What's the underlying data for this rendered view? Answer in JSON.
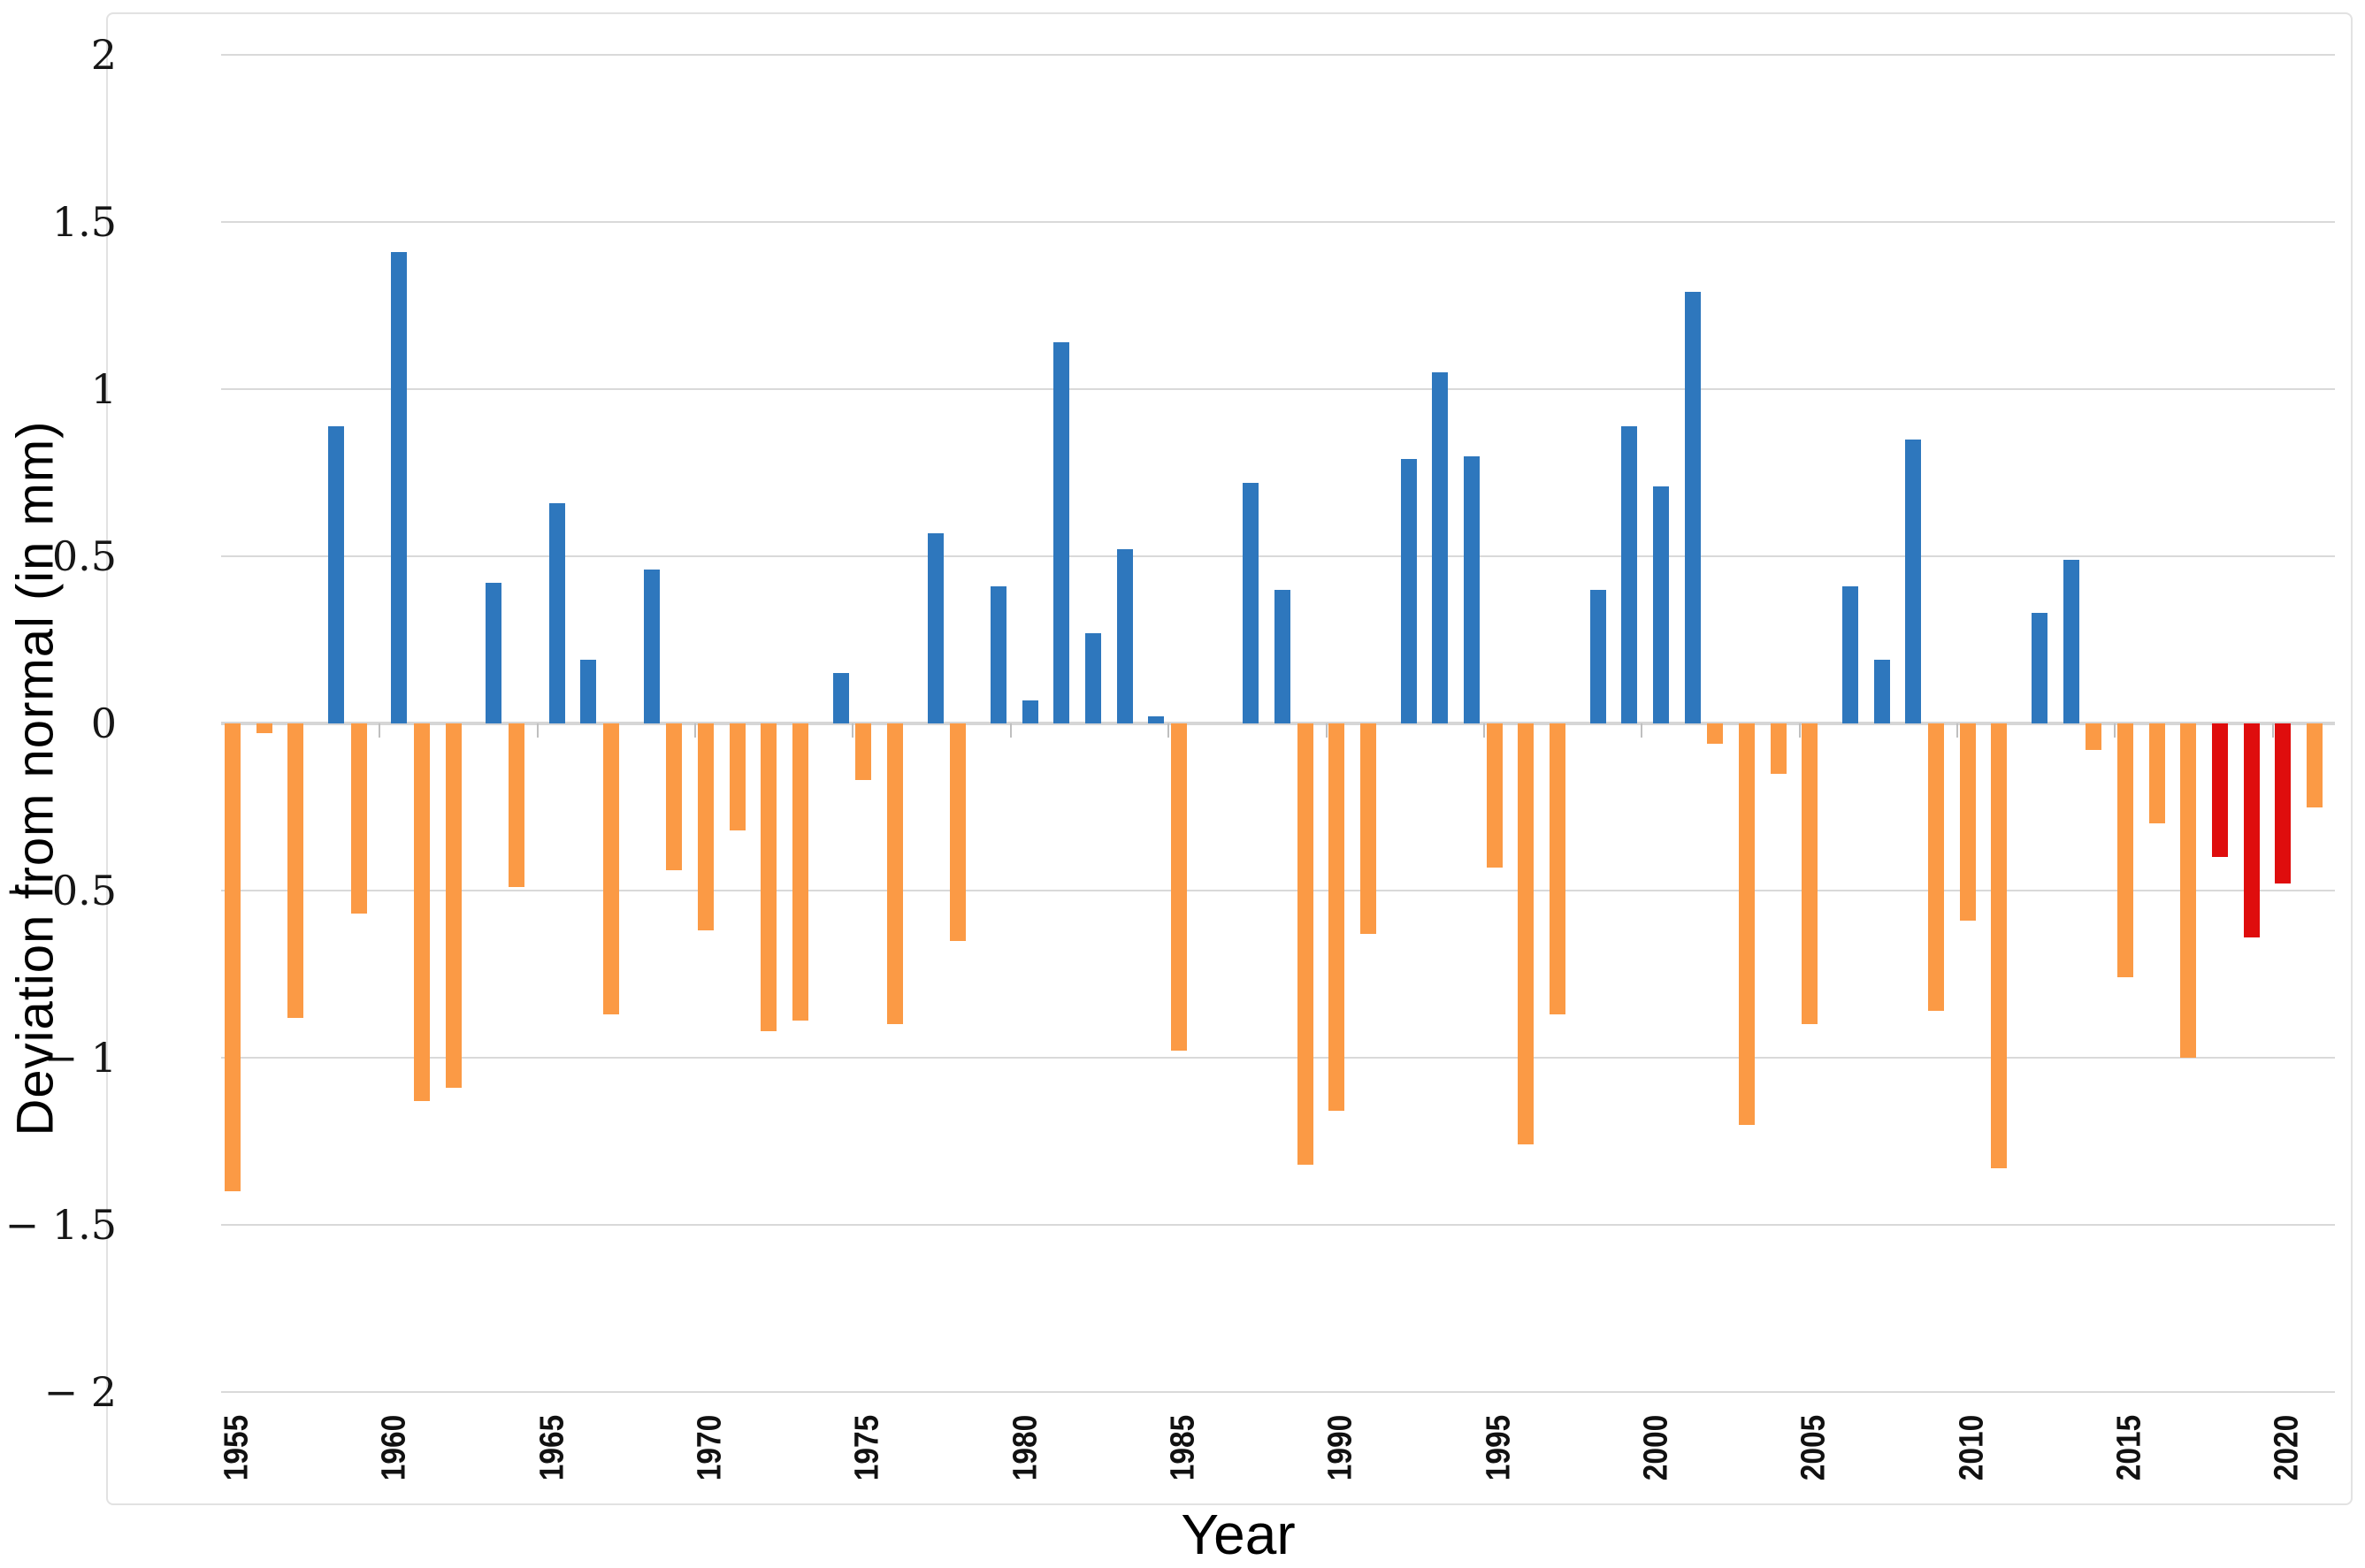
{
  "chart_data": {
    "type": "bar",
    "title": "",
    "xlabel": "Year",
    "ylabel": "Deviation from normal (in mm)",
    "ylim": [
      -2,
      2
    ],
    "grid": "horizontal",
    "legend": "none",
    "yticks": [
      {
        "value": 2,
        "label": "2"
      },
      {
        "value": 1.5,
        "label": "1.5"
      },
      {
        "value": 1,
        "label": "1"
      },
      {
        "value": 0.5,
        "label": "0.5"
      },
      {
        "value": 0,
        "label": "0"
      },
      {
        "value": -0.5,
        "label": "− 0.5"
      },
      {
        "value": -1,
        "label": "− 1"
      },
      {
        "value": -1.5,
        "label": "− 1.5"
      },
      {
        "value": -2,
        "label": "− 2"
      }
    ],
    "xtick_years": [
      1955,
      1960,
      1965,
      1970,
      1975,
      1980,
      1985,
      1990,
      1995,
      2000,
      2005,
      2010,
      2015,
      2020
    ],
    "years": [
      1955,
      1956,
      1957,
      1958,
      1959,
      1960,
      1961,
      1962,
      1963,
      1964,
      1965,
      1966,
      1967,
      1968,
      1969,
      1970,
      1971,
      1972,
      1973,
      1974,
      1975,
      1976,
      1977,
      1978,
      1979,
      1980,
      1981,
      1982,
      1983,
      1984,
      1985,
      1986,
      1987,
      1988,
      1989,
      1990,
      1991,
      1992,
      1993,
      1994,
      1995,
      1996,
      1997,
      1998,
      1999,
      2000,
      2001,
      2002,
      2003,
      2004,
      2005,
      2006,
      2007,
      2008,
      2009,
      2010,
      2011,
      2012,
      2013,
      2014,
      2015,
      2016,
      2017,
      2018,
      2019,
      2020,
      2021
    ],
    "values": [
      -1.4,
      -0.03,
      -0.88,
      0.89,
      -0.57,
      1.41,
      -1.13,
      -1.09,
      0.42,
      -0.49,
      0.66,
      0.19,
      -0.87,
      0.46,
      -0.44,
      -0.62,
      -0.32,
      -0.92,
      -0.89,
      0.15,
      -0.17,
      -0.9,
      0.57,
      -0.65,
      0.41,
      0.07,
      1.14,
      0.27,
      0.52,
      0.02,
      -0.98,
      0,
      0.72,
      0.4,
      -1.32,
      -1.16,
      -0.63,
      0.79,
      1.05,
      0.8,
      -0.43,
      -1.26,
      -0.87,
      0.4,
      0.89,
      0.71,
      1.29,
      -0.06,
      -1.2,
      -0.15,
      -0.9,
      0.41,
      0.19,
      0.85,
      -0.86,
      -0.59,
      -1.33,
      0.33,
      0.49,
      -0.08,
      -0.76,
      -0.3,
      -1.0,
      -0.4,
      -0.64,
      -0.48,
      -0.25
    ],
    "red_years": [
      2018,
      2019,
      2020
    ]
  },
  "colors": {
    "positive_bar": "#2e77bd",
    "negative_bar": "#fb9a45",
    "recent_negative_bar": "#df0d0d",
    "gridline": "#d9d9d9",
    "zero_line": "#d6d6d6",
    "frame_border": "#e2e2e2",
    "text": "#111111"
  }
}
